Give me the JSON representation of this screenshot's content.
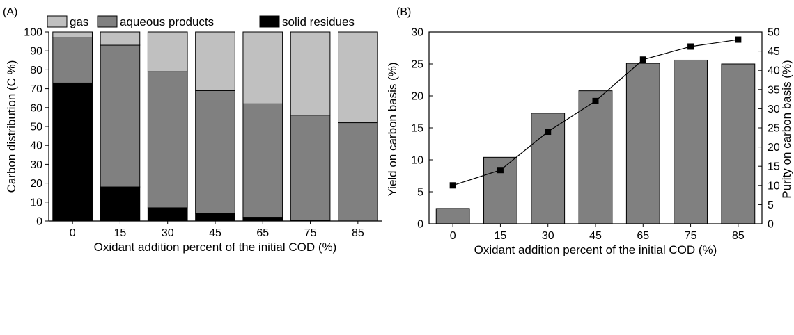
{
  "chart_data": [
    {
      "type": "bar",
      "stacked": true,
      "panel_label": "(A)",
      "title": "",
      "categories": [
        "0",
        "15",
        "30",
        "45",
        "65",
        "75",
        "85"
      ],
      "xlabel": "Oxidant addition percent of the initial COD (%)",
      "ylabel": "Carbon distribution (C %)",
      "ylim": [
        0,
        100
      ],
      "yticks": [
        "0",
        "10",
        "20",
        "30",
        "40",
        "50",
        "60",
        "70",
        "80",
        "90",
        "100"
      ],
      "legend_position": "top",
      "series": [
        {
          "name": "solid residues",
          "color": "#000000",
          "values": [
            73,
            18,
            7,
            4,
            2,
            0.5,
            0
          ]
        },
        {
          "name": "aqueous products",
          "color": "#808080",
          "values": [
            24,
            75,
            72,
            65,
            60,
            55.5,
            52
          ]
        },
        {
          "name": "gas",
          "color": "#c0c0c0",
          "values": [
            3,
            7,
            21,
            31,
            38,
            44,
            48
          ]
        }
      ],
      "legend_order": [
        "gas",
        "aqueous products",
        "solid residues"
      ]
    },
    {
      "type": "bar+line",
      "panel_label": "(B)",
      "title": "",
      "categories": [
        "0",
        "15",
        "30",
        "45",
        "65",
        "75",
        "85"
      ],
      "xlabel": "Oxidant addition percent of the initial COD (%)",
      "ylabel": "Yield on carbon basis (%)",
      "ylabel_right": "Purity on carbon basis (%)",
      "ylim": [
        0,
        30
      ],
      "ylim_right": [
        0,
        50
      ],
      "yticks": [
        "0",
        "5",
        "10",
        "15",
        "20",
        "25",
        "30"
      ],
      "yticks_right": [
        "0",
        "5",
        "10",
        "15",
        "20",
        "25",
        "30",
        "35",
        "40",
        "45",
        "50"
      ],
      "bar_series": {
        "name": "",
        "color": "#808080",
        "axis": "left",
        "values": [
          2.4,
          10.4,
          17.3,
          20.8,
          25.1,
          25.6,
          25.0
        ]
      },
      "line_series": {
        "name": "",
        "color": "#000000",
        "marker": "square",
        "axis": "right",
        "values": [
          10,
          14,
          24,
          32,
          42.8,
          46.2,
          48
        ]
      }
    }
  ]
}
